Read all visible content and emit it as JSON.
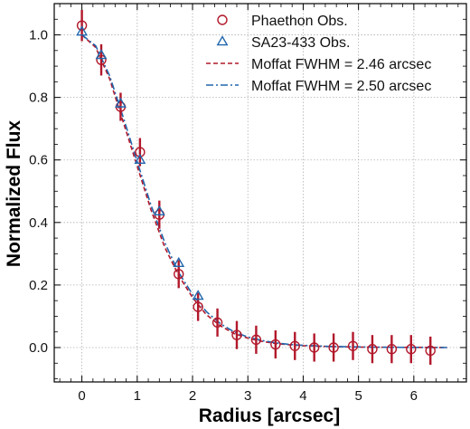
{
  "chart_data": {
    "type": "scatter",
    "xlabel": "Radius [arcsec]",
    "ylabel": "Normalized Flux",
    "xlim": [
      -0.5,
      6.95
    ],
    "ylim": [
      -0.11,
      1.1
    ],
    "x_ticks": [
      0,
      1,
      2,
      3,
      4,
      5,
      6
    ],
    "y_ticks": [
      0.0,
      0.2,
      0.4,
      0.6,
      0.8,
      1.0
    ],
    "x_tick_labels": [
      "0",
      "1",
      "2",
      "3",
      "4",
      "5",
      "6"
    ],
    "y_tick_labels": [
      "0.0",
      "0.2",
      "0.4",
      "0.6",
      "0.8",
      "1.0"
    ],
    "grid": true,
    "legend_position": "top-right",
    "series": [
      {
        "name": "Phaethon Obs.",
        "kind": "points",
        "marker": "circle",
        "color": "#b2182b",
        "x": [
          0.0,
          0.35,
          0.7,
          1.05,
          1.4,
          1.75,
          2.1,
          2.45,
          2.8,
          3.15,
          3.5,
          3.85,
          4.2,
          4.55,
          4.9,
          5.25,
          5.6,
          5.95,
          6.3
        ],
        "y": [
          1.03,
          0.92,
          0.77,
          0.625,
          0.425,
          0.235,
          0.13,
          0.08,
          0.04,
          0.025,
          0.01,
          0.005,
          0.0,
          0.0,
          0.005,
          -0.005,
          -0.005,
          -0.005,
          -0.01
        ],
        "yerr": [
          0.05,
          0.05,
          0.045,
          0.045,
          0.045,
          0.045,
          0.045,
          0.045,
          0.045,
          0.045,
          0.045,
          0.045,
          0.045,
          0.045,
          0.045,
          0.045,
          0.045,
          0.045,
          0.045
        ]
      },
      {
        "name": "SA23-433 Obs.",
        "kind": "points",
        "marker": "triangle",
        "color": "#2166ac",
        "x": [
          0.0,
          0.35,
          0.7,
          1.05,
          1.4,
          1.75,
          2.1
        ],
        "y": [
          1.01,
          0.935,
          0.78,
          0.6,
          0.435,
          0.27,
          0.165
        ]
      },
      {
        "name": "Moffat FWHM = 2.46 arcsec",
        "kind": "line",
        "style": "dashed",
        "color": "#b2182b",
        "x": [
          0,
          0.25,
          0.5,
          0.75,
          1.0,
          1.25,
          1.5,
          1.75,
          2.0,
          2.25,
          2.5,
          2.75,
          3.0,
          3.25,
          3.5,
          3.75,
          4.0,
          4.5,
          5.0,
          5.5,
          6.0,
          6.6
        ],
        "y": [
          1.0,
          0.96,
          0.86,
          0.72,
          0.58,
          0.44,
          0.32,
          0.23,
          0.16,
          0.105,
          0.07,
          0.045,
          0.03,
          0.02,
          0.013,
          0.009,
          0.006,
          0.003,
          0.0015,
          0.001,
          0.0005,
          0.0
        ]
      },
      {
        "name": "Moffat FWHM = 2.50 arcsec",
        "kind": "line",
        "style": "dashdot",
        "color": "#2166ac",
        "x": [
          0,
          0.25,
          0.5,
          0.75,
          1.0,
          1.25,
          1.5,
          1.75,
          2.0,
          2.25,
          2.5,
          2.75,
          3.0,
          3.25,
          3.5,
          3.75,
          4.0,
          4.5,
          5.0,
          5.5,
          6.0,
          6.6
        ],
        "y": [
          1.0,
          0.965,
          0.87,
          0.735,
          0.595,
          0.455,
          0.335,
          0.24,
          0.17,
          0.115,
          0.077,
          0.05,
          0.034,
          0.023,
          0.015,
          0.01,
          0.007,
          0.0035,
          0.002,
          0.001,
          0.0005,
          0.0
        ]
      }
    ]
  }
}
